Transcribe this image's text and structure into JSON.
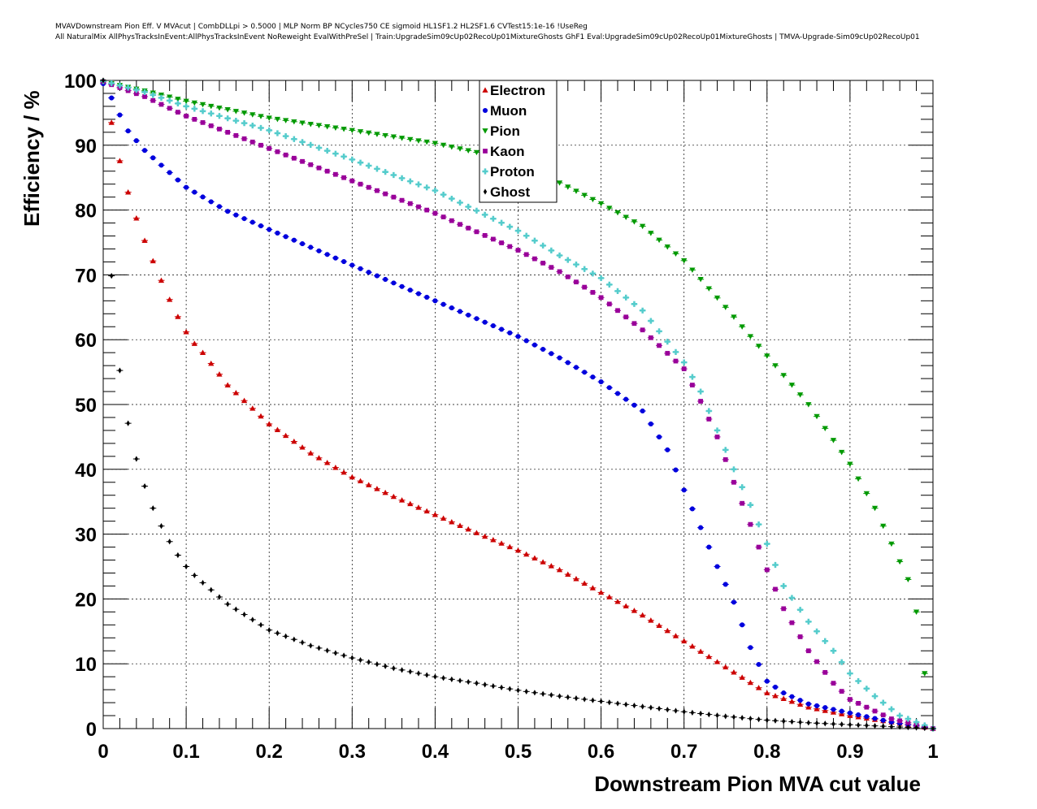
{
  "header": {
    "line1": "MVAVDownstream Pion Eff. V MVAcut | CombDLLpi > 0.5000 | MLP Norm BP NCycles750 CE sigmoid HL1SF1.2 HL2SF1.6 CVTest15:1e-16 !UseReg",
    "line2": "All NaturalMix AllPhysTracksInEvent:AllPhysTracksInEvent NoReweight EvalWithPreSel | Train:UpgradeSim09cUp02RecoUp01MixtureGhosts GhF1 Eval:UpgradeSim09cUp02RecoUp01MixtureGhosts | TMVA-Upgrade-Sim09cUp02RecoUp01"
  },
  "chart_data": {
    "type": "scatter",
    "xlabel": "Downstream Pion MVA cut value",
    "ylabel": "Efficiency / %",
    "xlim": [
      0,
      1
    ],
    "ylim": [
      0,
      100
    ],
    "x_ticks": [
      0,
      0.1,
      0.2,
      0.3,
      0.4,
      0.5,
      0.6,
      0.7,
      0.8,
      0.9,
      1
    ],
    "x_tick_labels": [
      "0",
      "0.1",
      "0.2",
      "0.3",
      "0.4",
      "0.5",
      "0.6",
      "0.7",
      "0.8",
      "0.9",
      "1"
    ],
    "y_ticks": [
      0,
      10,
      20,
      30,
      40,
      50,
      60,
      70,
      80,
      90,
      100
    ],
    "y_tick_labels": [
      "0",
      "10",
      "20",
      "30",
      "40",
      "50",
      "60",
      "70",
      "80",
      "90",
      "100"
    ],
    "grid": true,
    "legend_position": "top-center",
    "x_step": 0.01,
    "series": [
      {
        "name": "Electron",
        "color": "#cc0000",
        "marker": "triangle-up",
        "knots": [
          [
            0,
            100
          ],
          [
            0.005,
            96.8
          ],
          [
            0.015,
            90.2
          ],
          [
            0.025,
            85
          ],
          [
            0.035,
            80.5
          ],
          [
            0.045,
            77
          ],
          [
            0.055,
            73.6
          ],
          [
            0.065,
            70.7
          ],
          [
            0.075,
            67.6
          ],
          [
            0.085,
            64.8
          ],
          [
            0.095,
            62.3
          ],
          [
            0.105,
            60.1
          ],
          [
            0.12,
            58
          ],
          [
            0.15,
            53
          ],
          [
            0.2,
            47
          ],
          [
            0.25,
            42.5
          ],
          [
            0.3,
            38.8
          ],
          [
            0.35,
            35.8
          ],
          [
            0.4,
            33
          ],
          [
            0.45,
            30.2
          ],
          [
            0.5,
            27.5
          ],
          [
            0.55,
            24.5
          ],
          [
            0.6,
            21
          ],
          [
            0.65,
            17.5
          ],
          [
            0.7,
            13.5
          ],
          [
            0.75,
            9.5
          ],
          [
            0.8,
            5.5
          ],
          [
            0.85,
            3.3
          ],
          [
            0.9,
            2
          ],
          [
            0.95,
            1
          ],
          [
            1,
            0
          ]
        ]
      },
      {
        "name": "Muon",
        "color": "#0000dd",
        "marker": "circle",
        "knots": [
          [
            0,
            99.5
          ],
          [
            0.005,
            98.7
          ],
          [
            0.015,
            95.9
          ],
          [
            0.03,
            92.2
          ],
          [
            0.05,
            89.2
          ],
          [
            0.1,
            83.5
          ],
          [
            0.15,
            79.8
          ],
          [
            0.2,
            77
          ],
          [
            0.3,
            71.5
          ],
          [
            0.4,
            66
          ],
          [
            0.5,
            60.5
          ],
          [
            0.55,
            57.2
          ],
          [
            0.6,
            53.5
          ],
          [
            0.65,
            49
          ],
          [
            0.68,
            43
          ],
          [
            0.7,
            36.8
          ],
          [
            0.72,
            31
          ],
          [
            0.74,
            25
          ],
          [
            0.76,
            19.5
          ],
          [
            0.78,
            12.5
          ],
          [
            0.8,
            7.3
          ],
          [
            0.82,
            5.5
          ],
          [
            0.85,
            3.8
          ],
          [
            0.9,
            2.4
          ],
          [
            0.95,
            1
          ],
          [
            1,
            0
          ]
        ]
      },
      {
        "name": "Pion",
        "color": "#009900",
        "marker": "triangle-down",
        "knots": [
          [
            0,
            99.8
          ],
          [
            0.05,
            98.4
          ],
          [
            0.1,
            96.8
          ],
          [
            0.2,
            94.2
          ],
          [
            0.3,
            92.3
          ],
          [
            0.4,
            90.3
          ],
          [
            0.5,
            87.5
          ],
          [
            0.55,
            84.2
          ],
          [
            0.6,
            81
          ],
          [
            0.65,
            77.5
          ],
          [
            0.7,
            72.2
          ],
          [
            0.75,
            65
          ],
          [
            0.8,
            57.5
          ],
          [
            0.85,
            50
          ],
          [
            0.9,
            40.8
          ],
          [
            0.93,
            34
          ],
          [
            0.95,
            28.5
          ],
          [
            0.97,
            23
          ],
          [
            0.98,
            18
          ],
          [
            0.99,
            8.5
          ]
        ]
      },
      {
        "name": "Kaon",
        "color": "#990099",
        "marker": "square",
        "knots": [
          [
            0,
            99.8
          ],
          [
            0.05,
            97.5
          ],
          [
            0.1,
            94.5
          ],
          [
            0.2,
            89.5
          ],
          [
            0.3,
            84.5
          ],
          [
            0.4,
            79.5
          ],
          [
            0.5,
            73.8
          ],
          [
            0.55,
            70.5
          ],
          [
            0.6,
            66.5
          ],
          [
            0.65,
            61.5
          ],
          [
            0.7,
            55.5
          ],
          [
            0.72,
            50.5
          ],
          [
            0.74,
            45
          ],
          [
            0.76,
            38
          ],
          [
            0.78,
            31.5
          ],
          [
            0.8,
            24.5
          ],
          [
            0.82,
            18.5
          ],
          [
            0.85,
            12
          ],
          [
            0.88,
            7
          ],
          [
            0.9,
            4.5
          ],
          [
            0.95,
            1.5
          ],
          [
            1,
            0
          ]
        ]
      },
      {
        "name": "Proton",
        "color": "#55cccc",
        "marker": "cross",
        "knots": [
          [
            0,
            99.9
          ],
          [
            0.05,
            98.2
          ],
          [
            0.1,
            96
          ],
          [
            0.2,
            92.3
          ],
          [
            0.3,
            87.8
          ],
          [
            0.4,
            83
          ],
          [
            0.5,
            76.8
          ],
          [
            0.55,
            73
          ],
          [
            0.6,
            69.5
          ],
          [
            0.65,
            64.5
          ],
          [
            0.7,
            56.5
          ],
          [
            0.72,
            52
          ],
          [
            0.74,
            46
          ],
          [
            0.76,
            40
          ],
          [
            0.78,
            34.5
          ],
          [
            0.8,
            28.5
          ],
          [
            0.82,
            22
          ],
          [
            0.85,
            16.5
          ],
          [
            0.88,
            12
          ],
          [
            0.9,
            8.5
          ],
          [
            0.93,
            5
          ],
          [
            0.96,
            2
          ],
          [
            1,
            0
          ]
        ]
      },
      {
        "name": "Ghost",
        "color": "#000000",
        "marker": "diamond",
        "knots": [
          [
            0,
            100
          ],
          [
            0.005,
            79.5
          ],
          [
            0.015,
            60.2
          ],
          [
            0.025,
            50.3
          ],
          [
            0.035,
            43.9
          ],
          [
            0.045,
            39.3
          ],
          [
            0.055,
            35.5
          ],
          [
            0.065,
            32.5
          ],
          [
            0.075,
            30
          ],
          [
            0.085,
            27.7
          ],
          [
            0.095,
            25.8
          ],
          [
            0.105,
            24.2
          ],
          [
            0.12,
            22.5
          ],
          [
            0.15,
            19.2
          ],
          [
            0.2,
            15.2
          ],
          [
            0.25,
            12.8
          ],
          [
            0.3,
            10.9
          ],
          [
            0.35,
            9.3
          ],
          [
            0.4,
            8
          ],
          [
            0.45,
            7
          ],
          [
            0.5,
            5.9
          ],
          [
            0.55,
            5
          ],
          [
            0.6,
            4.2
          ],
          [
            0.65,
            3.4
          ],
          [
            0.7,
            2.6
          ],
          [
            0.75,
            1.9
          ],
          [
            0.8,
            1.3
          ],
          [
            0.85,
            0.9
          ],
          [
            0.9,
            0.6
          ],
          [
            0.95,
            0.3
          ],
          [
            1,
            0
          ]
        ]
      }
    ]
  }
}
